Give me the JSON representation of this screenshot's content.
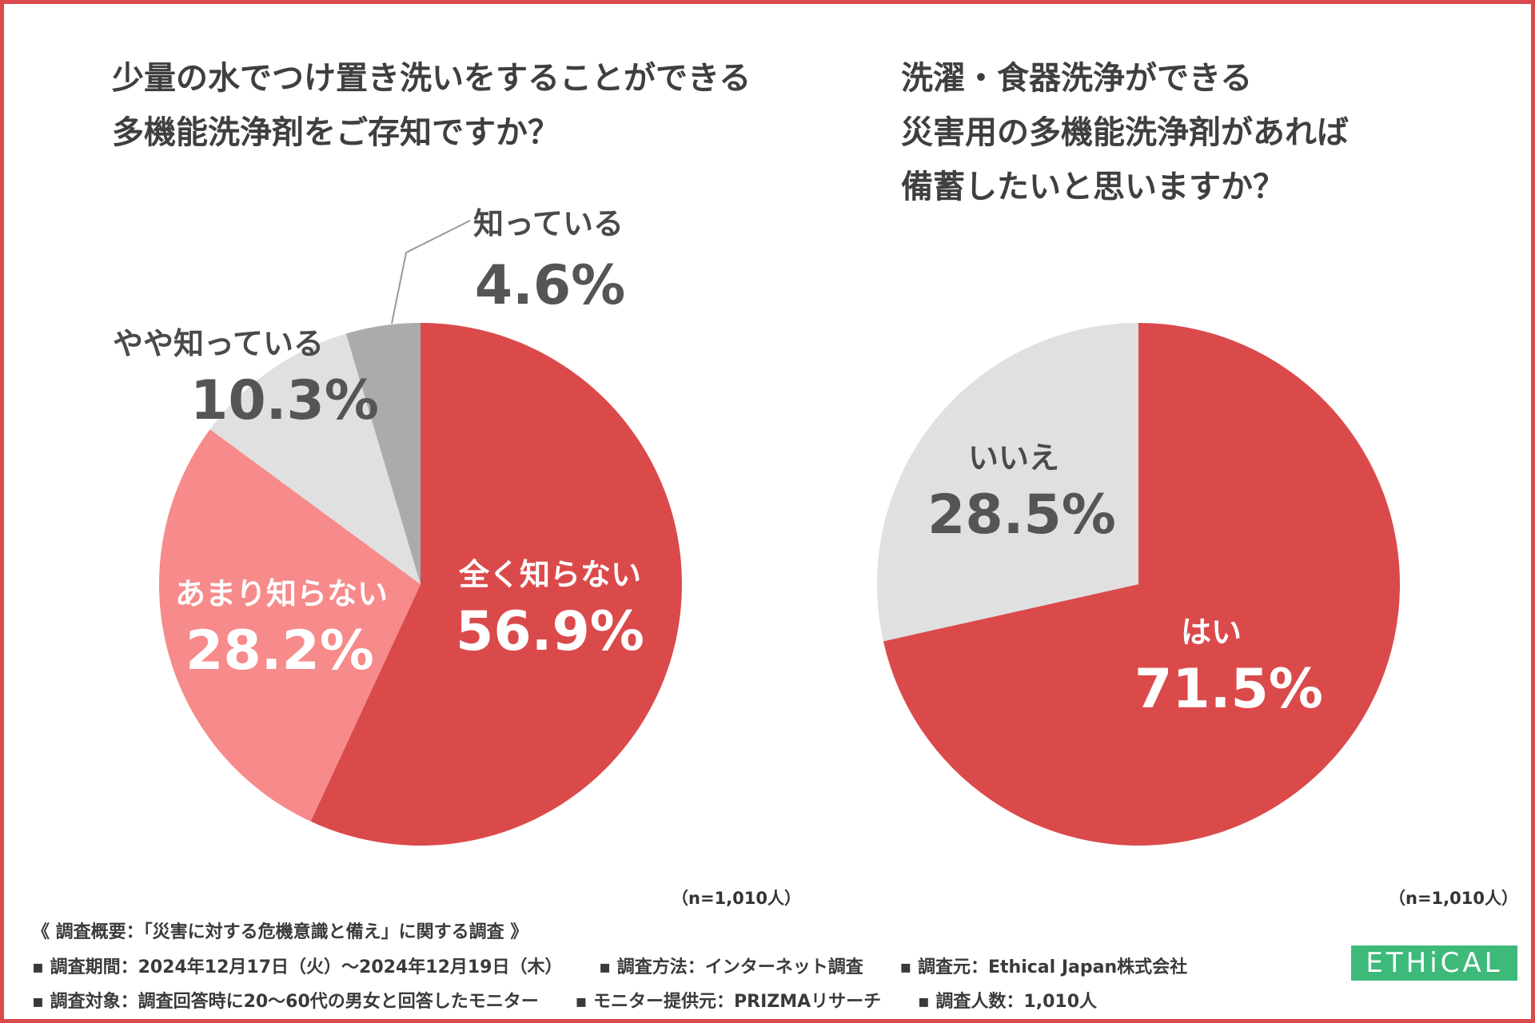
{
  "colors": {
    "frame": "#db4a4b",
    "red": "#db4a4b",
    "pink": "#f78a8a",
    "light_gray": "#e0e0e0",
    "mid_gray": "#ababab",
    "logo_green": "#3dba7a"
  },
  "chart_data": [
    {
      "type": "pie",
      "title": "少量の水でつけ置き洗いをすることができる 多機能洗浄剤をご存知ですか？",
      "title_lines": [
        "少量の水でつけ置き洗いをすることができる",
        "多機能洗浄剤をご存知ですか？"
      ],
      "categories": [
        "全く知らない",
        "あまり知らない",
        "やや知っている",
        "知っている"
      ],
      "values": [
        56.9,
        28.2,
        10.3,
        4.6
      ],
      "value_labels": [
        "56.9%",
        "28.2%",
        "10.3%",
        "4.6%"
      ],
      "colors": [
        "#db4a4b",
        "#f78a8a",
        "#e0e0e0",
        "#ababab"
      ],
      "sample_note": "（n=1,010人）"
    },
    {
      "type": "pie",
      "title": "洗濯・食器洗浄ができる 災害用の多機能洗浄剤があれば 備蓄したいと思いますか？",
      "title_lines": [
        "洗濯・食器洗浄ができる",
        "災害用の多機能洗浄剤があれば",
        "備蓄したいと思いますか？"
      ],
      "categories": [
        "はい",
        "いいえ"
      ],
      "values": [
        71.5,
        28.5
      ],
      "value_labels": [
        "71.5%",
        "28.5%"
      ],
      "colors": [
        "#db4a4b",
        "#e0e0e0"
      ],
      "sample_note": "（n=1,010人）"
    }
  ],
  "footer": {
    "survey_title": "《 調査概要：「災害に対する危機意識と備え」に関する調査 》",
    "row1": [
      "▪ 調査期間：2024年12月17日（火）〜2024年12月19日（木）",
      "▪ 調査方法：インターネット調査",
      "▪ 調査元：Ethical Japan株式会社"
    ],
    "row2": [
      "▪ 調査対象：調査回答時に20〜60代の男女と回答したモニター",
      "▪ モニター提供元：PRIZMAリサーチ",
      "▪ 調査人数：1,010人"
    ]
  },
  "logo": {
    "text": "ETHiCAL"
  }
}
